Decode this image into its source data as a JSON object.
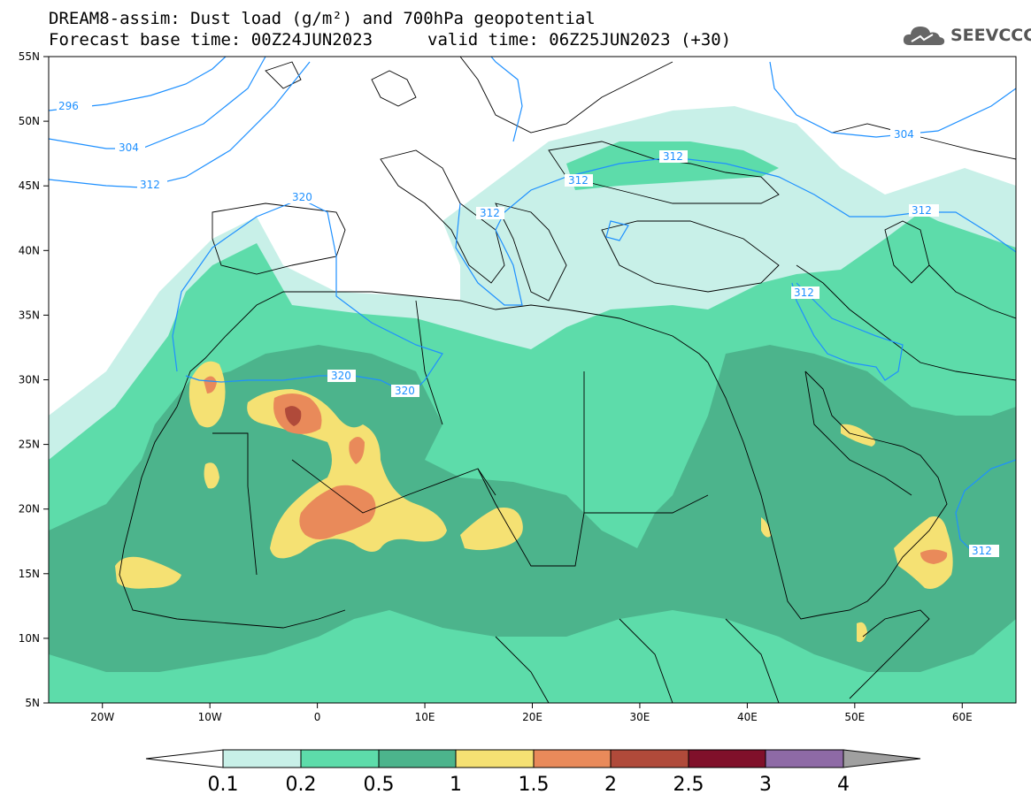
{
  "title_line1": "DREAM8-assim: Dust load (g/m²) and 700hPa geopotential",
  "title_line2": "Forecast base time: 00Z24JUN2023",
  "title_line2b": "valid time: 06Z25JUN2023 (+30)",
  "logo_text": "SEEVCCC",
  "colors": {
    "c1": "#c8f0e8",
    "c2": "#5ddcaa",
    "c3": "#4cb48c",
    "c4": "#f5e173",
    "c5": "#e98a5a",
    "c6": "#b04a3a",
    "c7": "#80102a",
    "c8": "#8e6aa6",
    "contour": "#1e90ff"
  },
  "lat_labels": [
    "55N",
    "50N",
    "45N",
    "40N",
    "35N",
    "30N",
    "25N",
    "20N",
    "15N",
    "10N",
    "5N"
  ],
  "lon_labels": [
    "20W",
    "10W",
    "0",
    "10E",
    "20E",
    "30E",
    "40E",
    "50E",
    "60E"
  ],
  "contour_labels": {
    "c296": "296",
    "c304a": "304",
    "c312a": "312",
    "c320a": "320",
    "c312b": "312",
    "c312c": "312",
    "c312d": "312",
    "c304b": "304",
    "c312e": "312",
    "c312f": "312",
    "c320b": "320",
    "c320c": "320",
    "c312g": "312"
  },
  "colorbar_ticks": [
    "0.1",
    "0.2",
    "0.5",
    "1",
    "1.5",
    "2",
    "2.5",
    "3",
    "4"
  ]
}
